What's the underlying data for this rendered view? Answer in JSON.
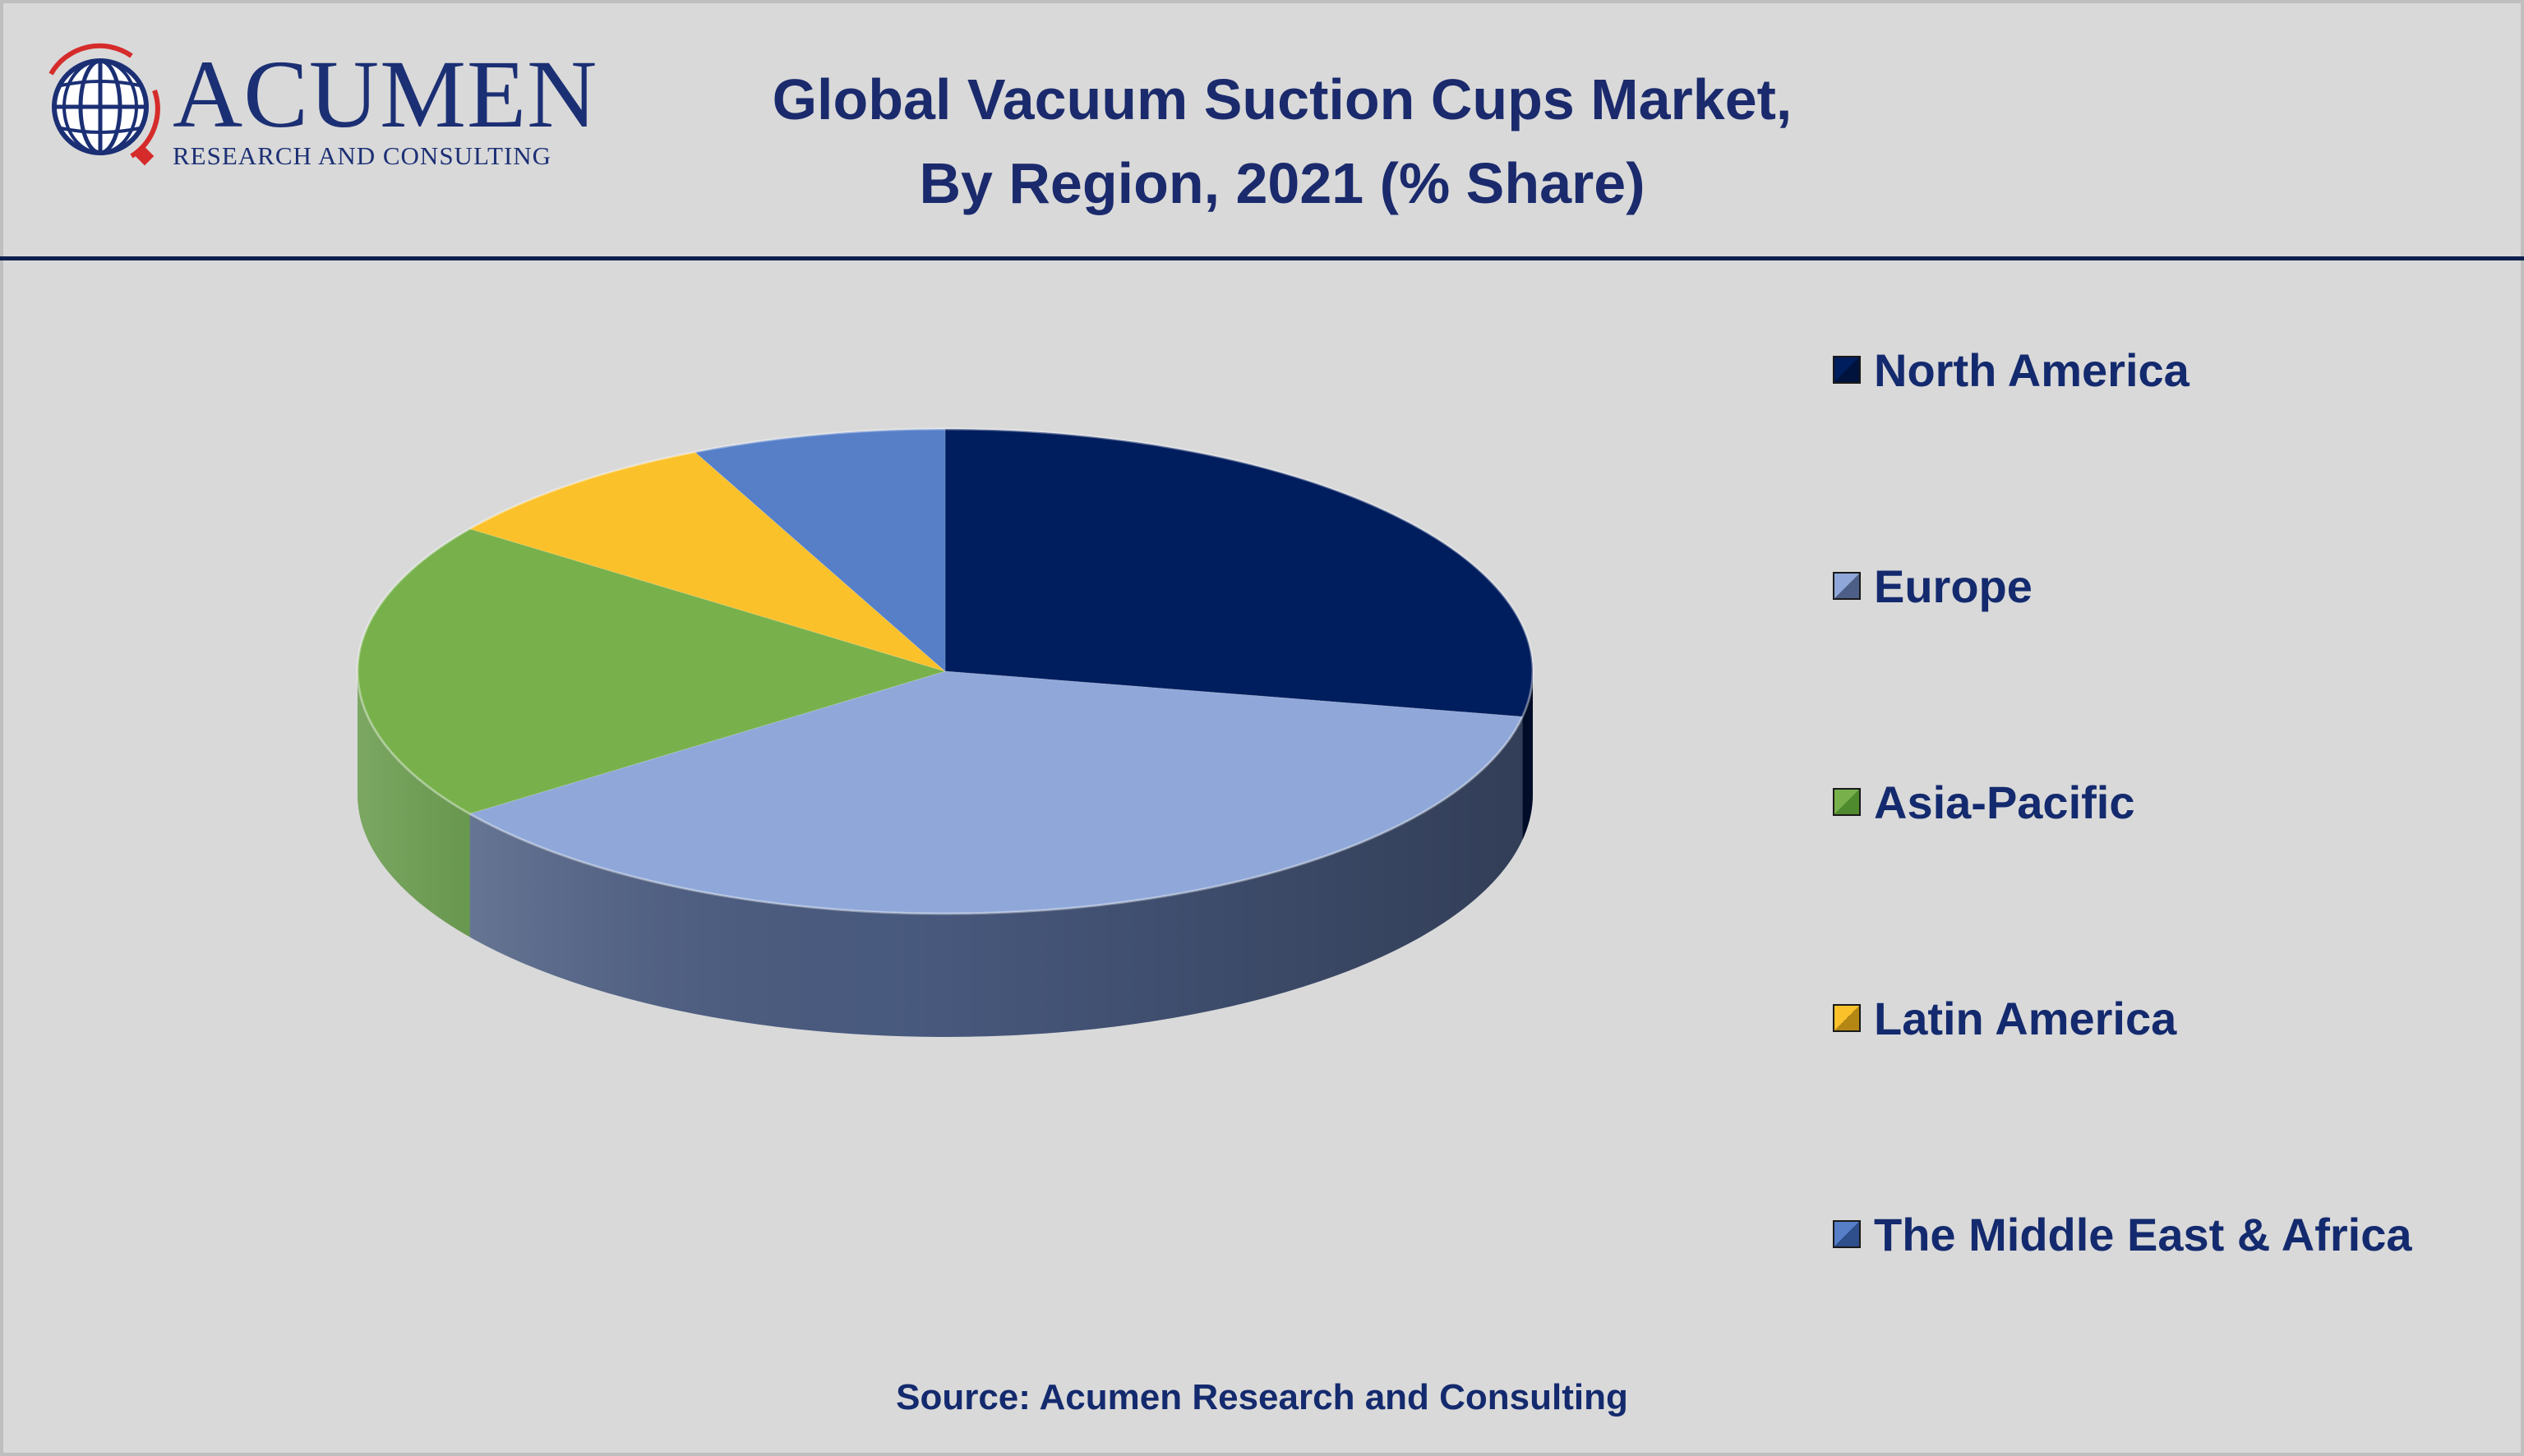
{
  "header": {
    "logo": {
      "word": "ACUMEN",
      "tagline": "RESEARCH AND CONSULTING"
    },
    "title_line1": "Global Vacuum Suction Cups Market,",
    "title_line2": "By Region, 2021 (% Share)"
  },
  "chart_data": {
    "type": "pie",
    "title": "Global Vacuum Suction Cups Market, By Region, 2021 (% Share)",
    "style": "3d",
    "legend_position": "right",
    "categories": [
      "North America",
      "Europe",
      "Asia-Pacific",
      "Latin America",
      "The Middle East & Africa"
    ],
    "values": [
      28,
      37,
      20,
      8,
      7
    ],
    "colors": [
      "#001d5e",
      "#8fa8d9",
      "#78b14c",
      "#fbc12a",
      "#567fc8"
    ],
    "side_colors": [
      "#00133d",
      "#4d5f86",
      "#4f8a2e",
      "#b48714",
      "#2e4e8c"
    ]
  },
  "source": "Source: Acumen Research and Consulting"
}
